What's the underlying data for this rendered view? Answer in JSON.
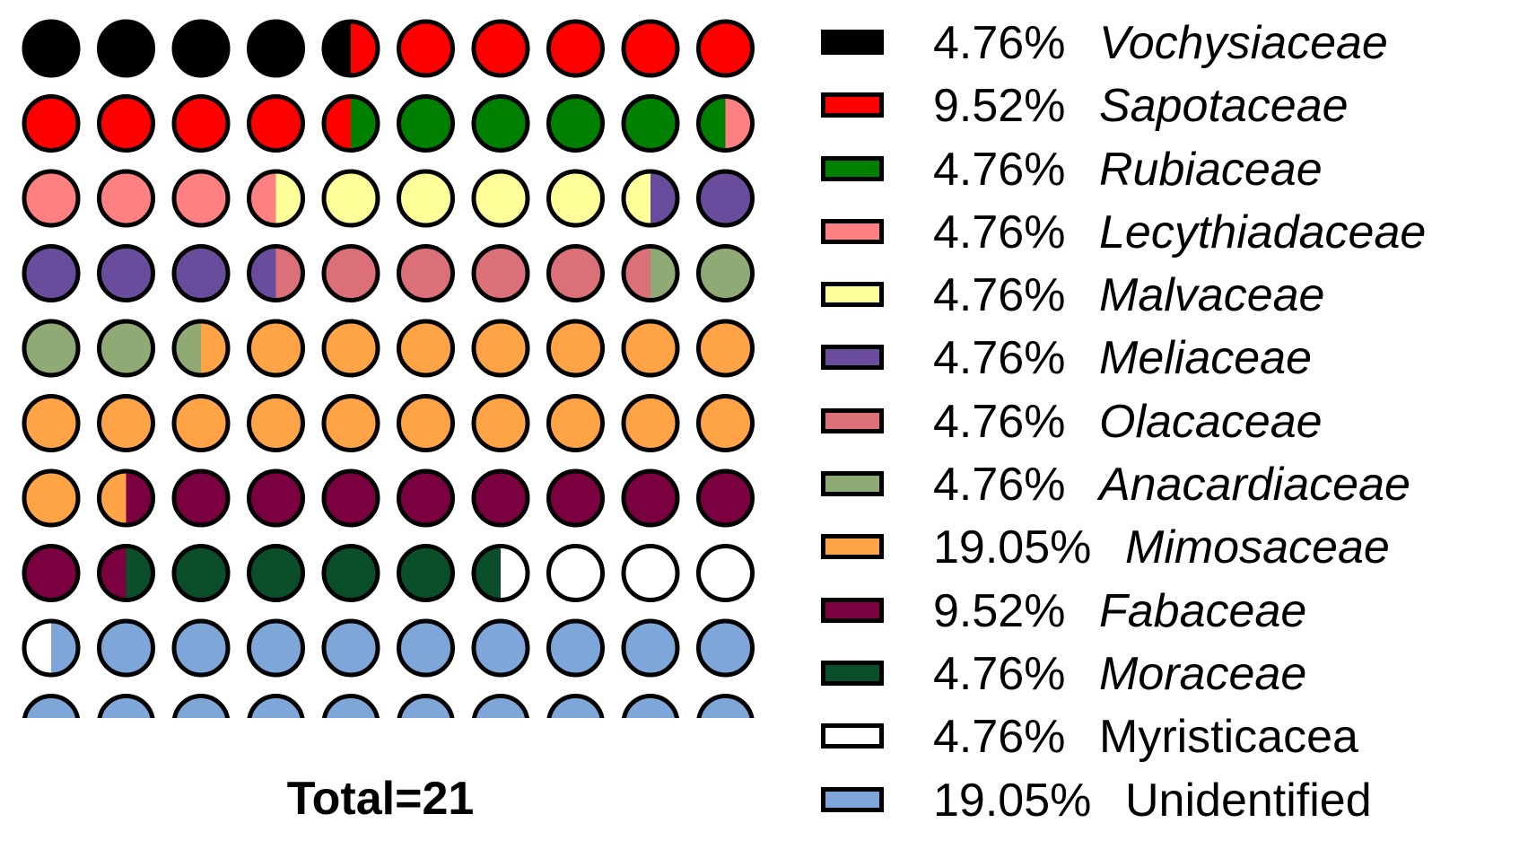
{
  "chart_data": {
    "type": "waffle",
    "total_label": "Total=21",
    "grid_rows": 10,
    "grid_cols": 10,
    "categories": [
      {
        "name": "Vochysiaceae",
        "percent_label": "4.76%",
        "percent": 4.76,
        "color": "#000000",
        "italic": true
      },
      {
        "name": "Sapotaceae",
        "percent_label": "9.52%",
        "percent": 9.52,
        "color": "#ff0000",
        "italic": true
      },
      {
        "name": "Rubiaceae",
        "percent_label": "4.76%",
        "percent": 4.76,
        "color": "#008000",
        "italic": true
      },
      {
        "name": "Lecythiadaceae",
        "percent_label": "4.76%",
        "percent": 4.76,
        "color": "#ff8080",
        "italic": true
      },
      {
        "name": "Malvaceae",
        "percent_label": "4.76%",
        "percent": 4.76,
        "color": "#ffff99",
        "italic": true
      },
      {
        "name": "Meliaceae",
        "percent_label": "4.76%",
        "percent": 4.76,
        "color": "#6a4c9c",
        "italic": true
      },
      {
        "name": "Olacaceae",
        "percent_label": "4.76%",
        "percent": 4.76,
        "color": "#db7079",
        "italic": true
      },
      {
        "name": "Anacardiaceae",
        "percent_label": "4.76%",
        "percent": 4.76,
        "color": "#8faa74",
        "italic": true
      },
      {
        "name": "Mimosaceae",
        "percent_label": "19.05%",
        "percent": 19.05,
        "color": "#ffa347",
        "italic": true
      },
      {
        "name": "Fabaceae",
        "percent_label": "9.52%",
        "percent": 9.52,
        "color": "#7a0040",
        "italic": true
      },
      {
        "name": "Moraceae",
        "percent_label": "4.76%",
        "percent": 4.76,
        "color": "#0b4f2a",
        "italic": true
      },
      {
        "name": "Myristicacea",
        "percent_label": "4.76%",
        "percent": 4.76,
        "color": "#ffffff",
        "italic": false
      },
      {
        "name": "Unidentified",
        "percent_label": "19.05%",
        "percent": 19.05,
        "color": "#7ea6d8",
        "italic": false
      }
    ]
  }
}
